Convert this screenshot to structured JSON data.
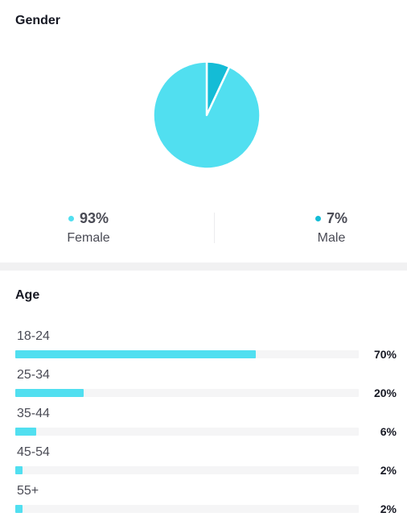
{
  "colors": {
    "female": "#51dff0",
    "male": "#14bcd6",
    "bar_fill": "#51dff0",
    "bar_track": "#f5f5f6"
  },
  "gender": {
    "title": "Gender",
    "items": [
      {
        "value": "93%",
        "label": "Female"
      },
      {
        "value": "7%",
        "label": "Male"
      }
    ]
  },
  "age": {
    "title": "Age",
    "rows": [
      {
        "label": "18-24",
        "percent": "70%"
      },
      {
        "label": "25-34",
        "percent": "20%"
      },
      {
        "label": "35-44",
        "percent": "6%"
      },
      {
        "label": "45-54",
        "percent": "2%"
      },
      {
        "label": "55+",
        "percent": "2%"
      }
    ]
  },
  "chart_data": [
    {
      "type": "pie",
      "title": "Gender",
      "categories": [
        "Female",
        "Male"
      ],
      "values": [
        93,
        7
      ]
    },
    {
      "type": "bar",
      "title": "Age",
      "categories": [
        "18-24",
        "25-34",
        "35-44",
        "45-54",
        "55+"
      ],
      "values": [
        70,
        20,
        6,
        2,
        2
      ],
      "ylim": [
        0,
        100
      ]
    }
  ]
}
